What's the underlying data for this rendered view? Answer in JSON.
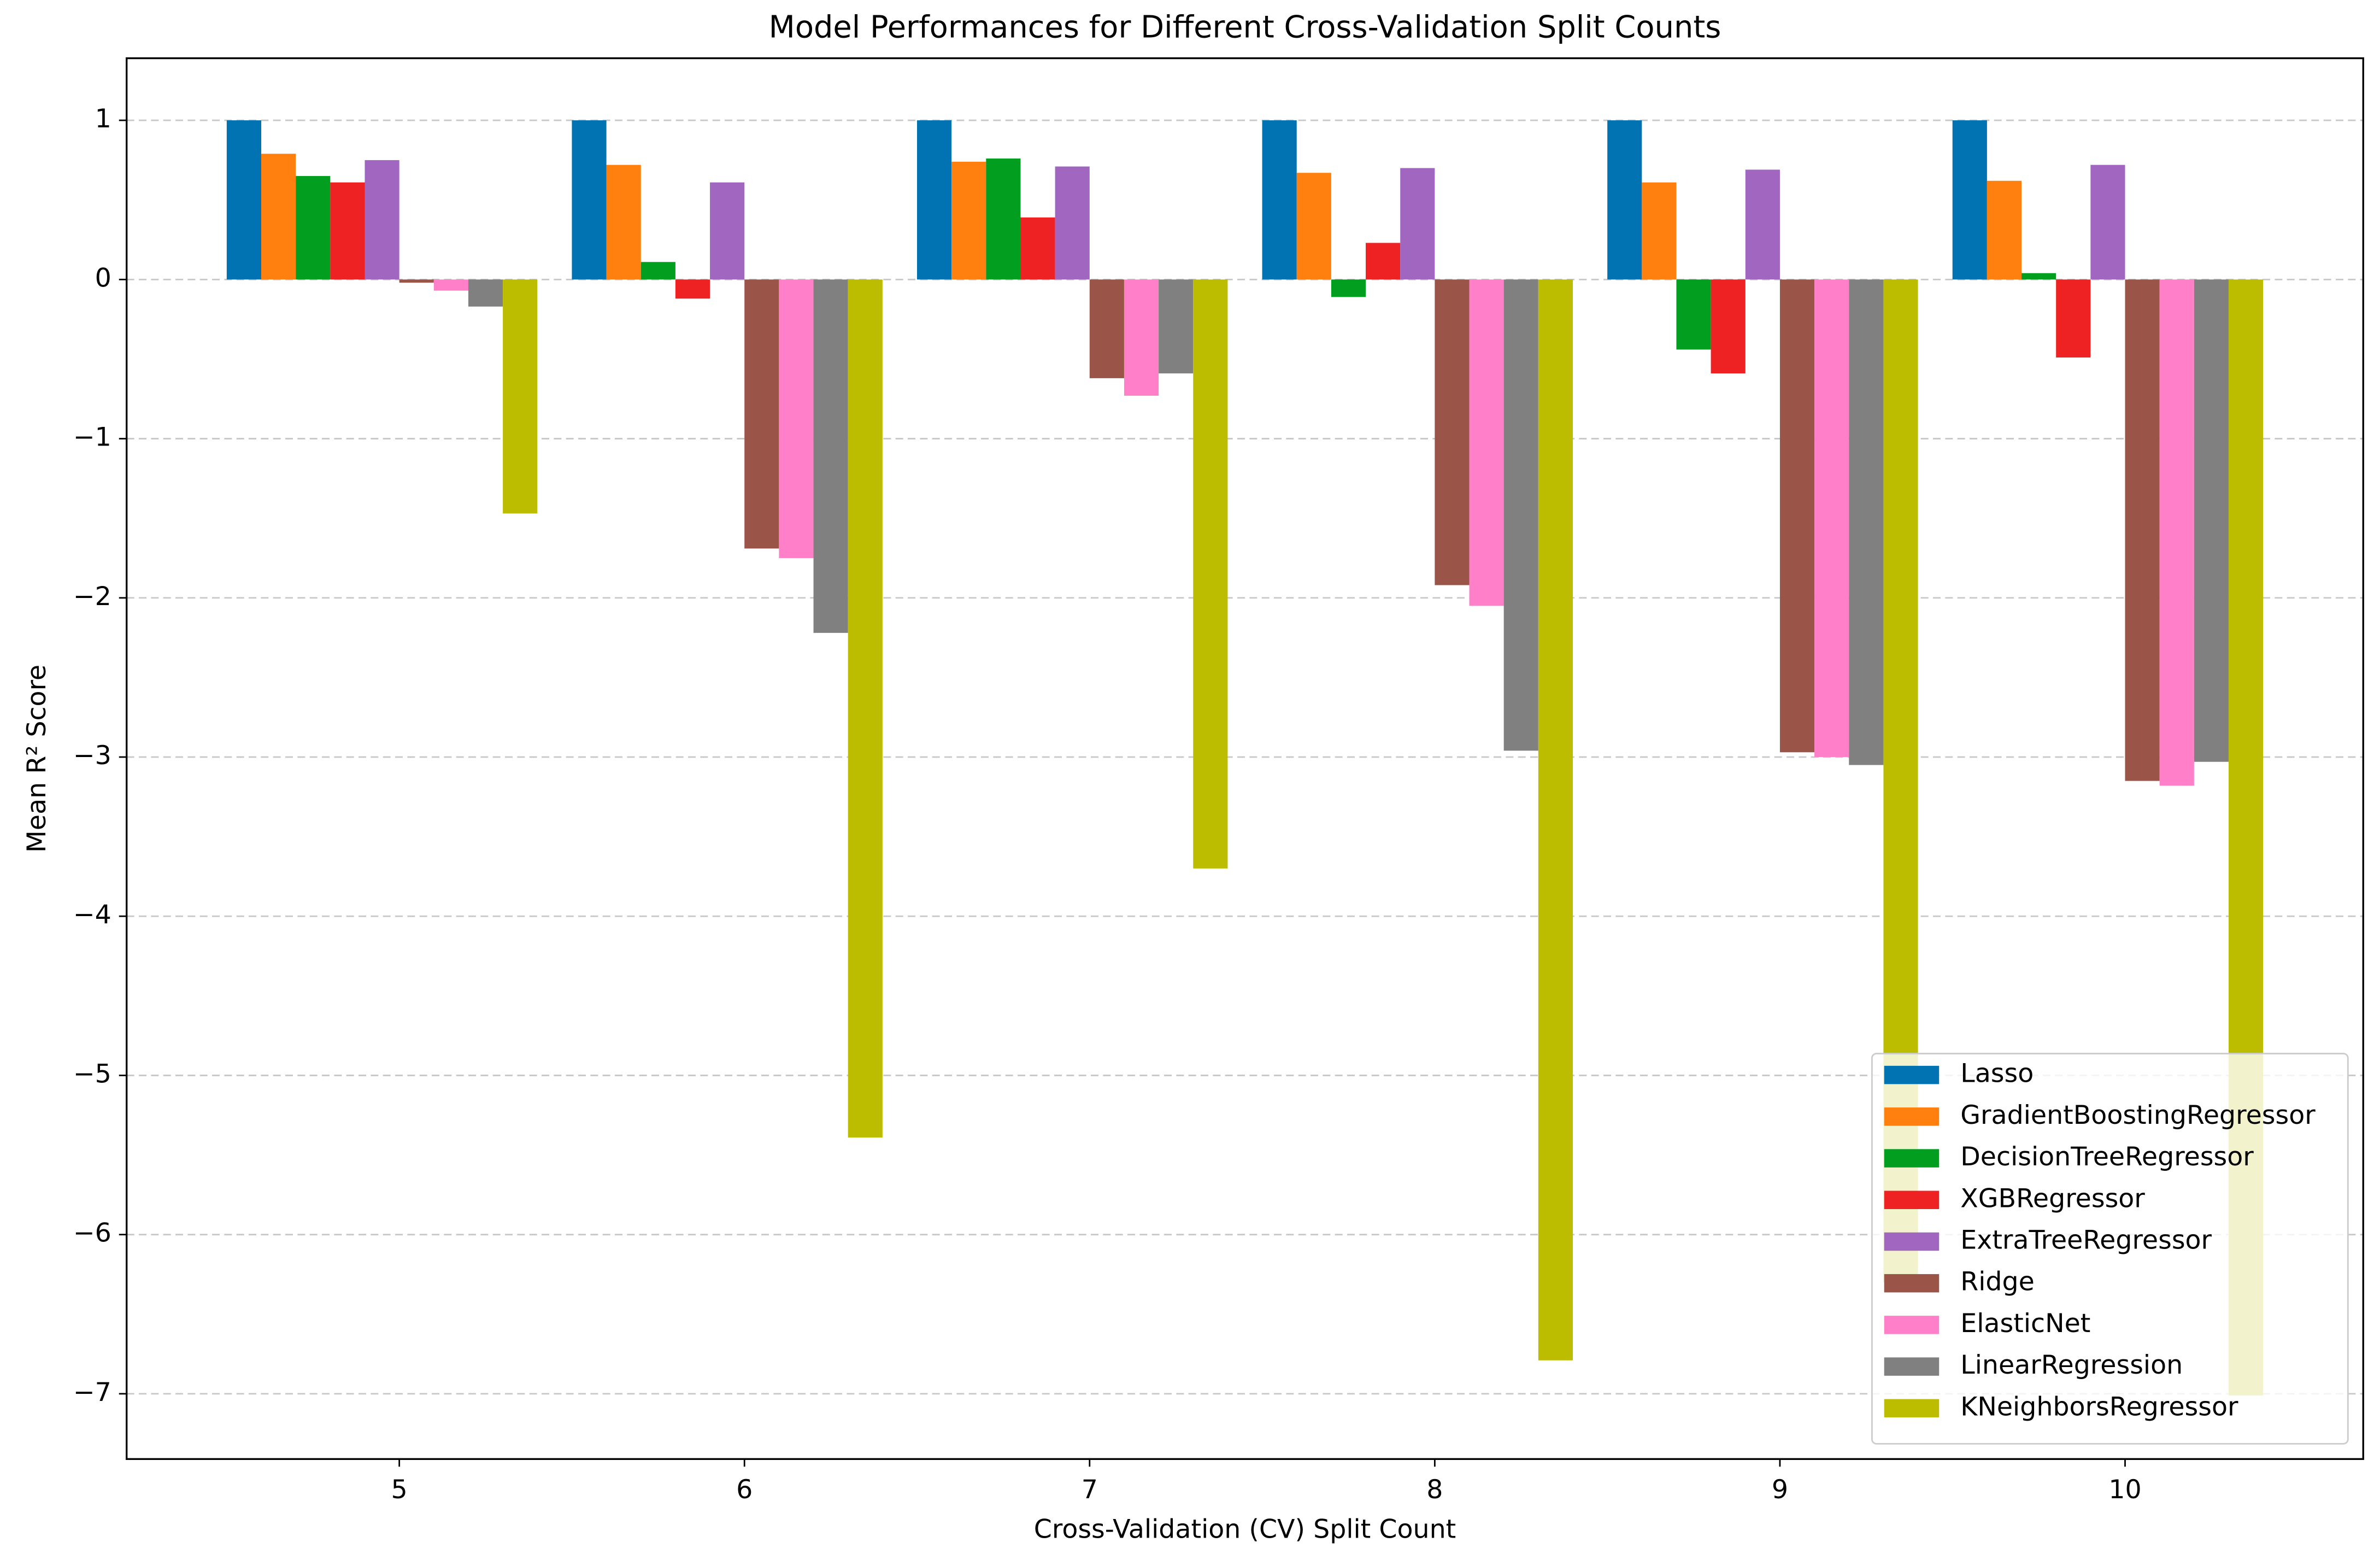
{
  "chart_data": {
    "type": "bar",
    "title": "Model Performances for Different Cross-Validation Split Counts",
    "x_label": "Cross-Validation (CV) Split Count",
    "y_label": "Mean R² Score",
    "x": [
      5,
      6,
      7,
      8,
      9,
      10
    ],
    "xlim": [
      4.21,
      10.69
    ],
    "xticks": [
      5,
      6,
      7,
      8,
      9,
      10
    ],
    "ylim": [
      -7.41,
      1.39
    ],
    "yticks": [
      {
        "value": -7,
        "label": "−7"
      },
      {
        "value": -6,
        "label": "−6"
      },
      {
        "value": -5,
        "label": "−5"
      },
      {
        "value": -4,
        "label": "−4"
      },
      {
        "value": -3,
        "label": "−3"
      },
      {
        "value": -2,
        "label": "−2"
      },
      {
        "value": -1,
        "label": "−1"
      },
      0,
      1
    ],
    "grid": true,
    "legend": "lower right",
    "series": [
      {
        "name": "Lasso",
        "color": "#0173b2",
        "values": [
          1.0,
          1.0,
          1.0,
          1.0,
          1.0,
          1.0
        ]
      },
      {
        "name": "GradientBoostingRegressor",
        "color": "#ff800e",
        "values": [
          0.79,
          0.72,
          0.74,
          0.67,
          0.61,
          0.62
        ]
      },
      {
        "name": "DecisionTreeRegressor",
        "color": "#029e20",
        "values": [
          0.65,
          0.11,
          0.76,
          -0.11,
          -0.44,
          0.04
        ]
      },
      {
        "name": "XGBRegressor",
        "color": "#ee2222",
        "values": [
          0.61,
          -0.12,
          0.39,
          0.23,
          -0.59,
          -0.49
        ]
      },
      {
        "name": "ExtraTreeRegressor",
        "color": "#a066c0",
        "values": [
          0.75,
          0.61,
          0.71,
          0.7,
          0.69,
          0.72
        ]
      },
      {
        "name": "Ridge",
        "color": "#9a5548",
        "values": [
          -0.02,
          -1.69,
          -0.62,
          -1.92,
          -2.97,
          -3.15
        ]
      },
      {
        "name": "ElasticNet",
        "color": "#ff7fc8",
        "values": [
          -0.07,
          -1.75,
          -0.73,
          -2.05,
          -3.0,
          -3.18
        ]
      },
      {
        "name": "LinearRegression",
        "color": "#808080",
        "values": [
          -0.17,
          -2.22,
          -0.59,
          -2.96,
          -3.05,
          -3.03
        ]
      },
      {
        "name": "KNeighborsRegressor",
        "color": "#bcbd00",
        "values": [
          -1.47,
          -5.39,
          -3.7,
          -6.79,
          -6.3,
          -7.01
        ]
      }
    ]
  }
}
